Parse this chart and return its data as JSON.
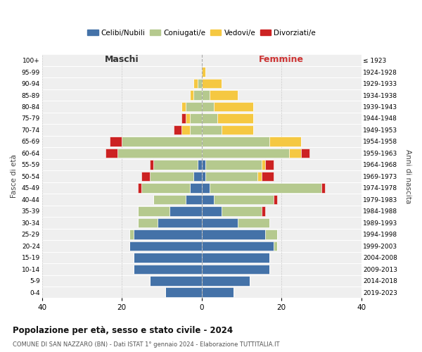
{
  "age_groups": [
    "0-4",
    "5-9",
    "10-14",
    "15-19",
    "20-24",
    "25-29",
    "30-34",
    "35-39",
    "40-44",
    "45-49",
    "50-54",
    "55-59",
    "60-64",
    "65-69",
    "70-74",
    "75-79",
    "80-84",
    "85-89",
    "90-94",
    "95-99",
    "100+"
  ],
  "birth_years": [
    "2019-2023",
    "2014-2018",
    "2009-2013",
    "2004-2008",
    "1999-2003",
    "1994-1998",
    "1989-1993",
    "1984-1988",
    "1979-1983",
    "1974-1978",
    "1969-1973",
    "1964-1968",
    "1959-1963",
    "1954-1958",
    "1949-1953",
    "1944-1948",
    "1939-1943",
    "1934-1938",
    "1929-1933",
    "1924-1928",
    "≤ 1923"
  ],
  "maschi": {
    "celibi": [
      9,
      13,
      17,
      17,
      18,
      17,
      11,
      8,
      4,
      3,
      2,
      1,
      0,
      0,
      0,
      0,
      0,
      0,
      0,
      0,
      0
    ],
    "coniugati": [
      0,
      0,
      0,
      0,
      0,
      1,
      5,
      8,
      8,
      12,
      11,
      11,
      21,
      20,
      3,
      3,
      4,
      2,
      1,
      0,
      0
    ],
    "vedovi": [
      0,
      0,
      0,
      0,
      0,
      0,
      0,
      0,
      0,
      0,
      0,
      0,
      0,
      0,
      2,
      1,
      1,
      1,
      1,
      0,
      0
    ],
    "divorziati": [
      0,
      0,
      0,
      0,
      0,
      0,
      0,
      0,
      0,
      1,
      2,
      1,
      3,
      3,
      2,
      1,
      0,
      0,
      0,
      0,
      0
    ]
  },
  "femmine": {
    "nubili": [
      8,
      12,
      17,
      17,
      18,
      16,
      9,
      5,
      3,
      2,
      1,
      1,
      0,
      0,
      0,
      0,
      0,
      0,
      0,
      0,
      0
    ],
    "coniugate": [
      0,
      0,
      0,
      0,
      1,
      3,
      8,
      10,
      15,
      28,
      13,
      14,
      22,
      17,
      5,
      4,
      3,
      2,
      0,
      0,
      0
    ],
    "vedove": [
      0,
      0,
      0,
      0,
      0,
      0,
      0,
      0,
      0,
      0,
      1,
      1,
      3,
      8,
      8,
      9,
      10,
      7,
      5,
      1,
      0
    ],
    "divorziate": [
      0,
      0,
      0,
      0,
      0,
      0,
      0,
      1,
      1,
      1,
      3,
      2,
      2,
      0,
      0,
      0,
      0,
      0,
      0,
      0,
      0
    ]
  },
  "colors": {
    "celibi_nubili": "#4472a8",
    "coniugati": "#b5c98e",
    "vedovi": "#f5c842",
    "divorziati": "#cc2222"
  },
  "xlim": 40,
  "title": "Popolazione per età, sesso e stato civile - 2024",
  "subtitle": "COMUNE DI SAN NAZZARO (BN) - Dati ISTAT 1° gennaio 2024 - Elaborazione TUTTITALIA.IT",
  "ylabel_left": "Fasce di età",
  "ylabel_right": "Anni di nascita",
  "label_maschi": "Maschi",
  "label_femmine": "Femmine",
  "bg_color": "#f0f0f0",
  "legend_labels": [
    "Celibi/Nubili",
    "Coniugati/e",
    "Vedovi/e",
    "Divorziati/e"
  ]
}
